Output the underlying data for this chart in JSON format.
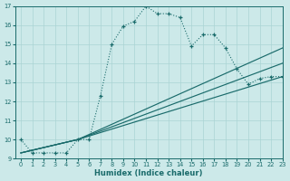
{
  "xlabel": "Humidex (Indice chaleur)",
  "xlim": [
    -0.5,
    23
  ],
  "ylim": [
    9,
    17
  ],
  "xticks": [
    0,
    1,
    2,
    3,
    4,
    5,
    6,
    7,
    8,
    9,
    10,
    11,
    12,
    13,
    14,
    15,
    16,
    17,
    18,
    19,
    20,
    21,
    22,
    23
  ],
  "yticks": [
    9,
    10,
    11,
    12,
    13,
    14,
    15,
    16,
    17
  ],
  "bg_color": "#cce9e9",
  "grid_color": "#aad4d4",
  "line_color": "#1a6b6b",
  "main_x": [
    0,
    1,
    2,
    3,
    4,
    5,
    6,
    7,
    8,
    9,
    10,
    11,
    12,
    13,
    14,
    15,
    16,
    17,
    18,
    19,
    20,
    21,
    22,
    23
  ],
  "main_y": [
    10,
    9.3,
    9.3,
    9.3,
    9.3,
    10.0,
    10.0,
    12.3,
    15.0,
    15.95,
    16.2,
    17.0,
    16.6,
    16.6,
    16.4,
    14.9,
    15.5,
    15.5,
    14.8,
    13.7,
    12.9,
    13.2,
    13.3,
    13.3
  ],
  "solid_lines": [
    {
      "x": [
        0,
        5,
        23
      ],
      "y": [
        9.3,
        10.0,
        13.3
      ]
    },
    {
      "x": [
        0,
        5,
        23
      ],
      "y": [
        9.3,
        10.0,
        14.0
      ]
    },
    {
      "x": [
        0,
        5,
        23
      ],
      "y": [
        9.3,
        10.0,
        14.8
      ]
    }
  ]
}
